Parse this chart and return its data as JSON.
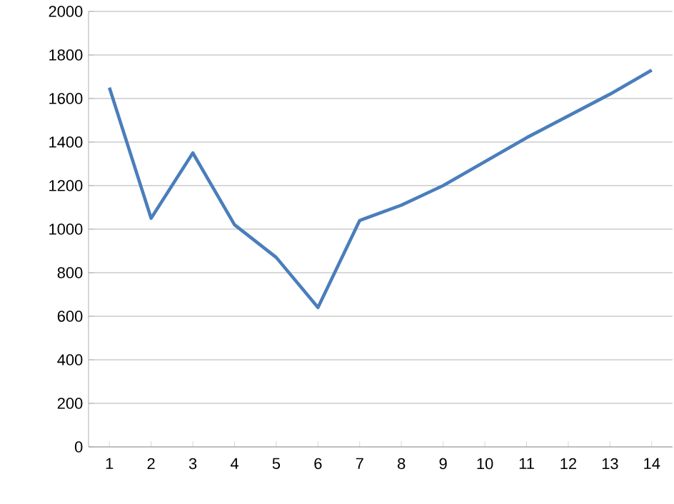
{
  "chart_data": {
    "type": "line",
    "categories": [
      "1",
      "2",
      "3",
      "4",
      "5",
      "6",
      "7",
      "8",
      "9",
      "10",
      "11",
      "12",
      "13",
      "14"
    ],
    "series": [
      {
        "color": "#4a7ebb",
        "values": [
          1650,
          1050,
          1350,
          1020,
          870,
          640,
          1040,
          1110,
          1200,
          1310,
          1420,
          1520,
          1620,
          1730
        ]
      }
    ],
    "ylim": [
      0,
      2000
    ],
    "yticks": [
      0,
      200,
      400,
      600,
      800,
      1000,
      1200,
      1400,
      1600,
      1800,
      2000
    ],
    "grid": "y",
    "marker": "none",
    "line_style": "solid"
  }
}
